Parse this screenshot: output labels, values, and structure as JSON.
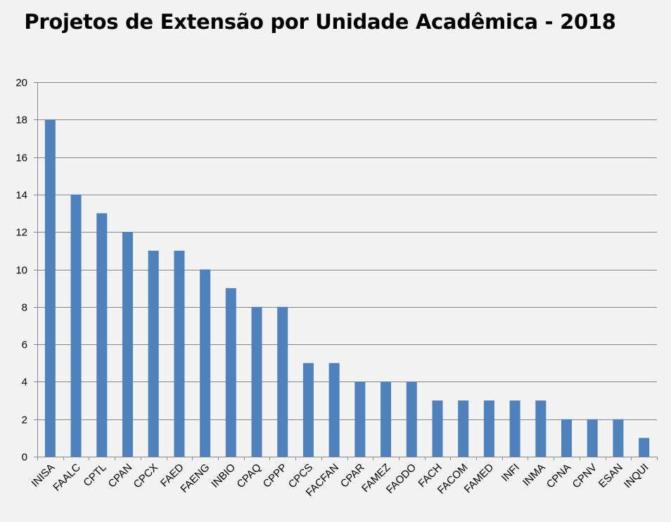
{
  "chart_data": {
    "type": "bar",
    "title": "Projetos de Extensão por Unidade Acadêmica - 2018",
    "xlabel": "",
    "ylabel": "",
    "categories": [
      "INISA",
      "FAALC",
      "CPTL",
      "CPAN",
      "CPCX",
      "FAED",
      "FAENG",
      "INBIO",
      "CPAQ",
      "CPPP",
      "CPCS",
      "FACFAN",
      "CPAR",
      "FAMEZ",
      "FAODO",
      "FACH",
      "FACOM",
      "FAMED",
      "INFI",
      "INMA",
      "CPNA",
      "CPNV",
      "ESAN",
      "INQUI"
    ],
    "values": [
      18,
      14,
      13,
      12,
      11,
      11,
      10,
      9,
      8,
      8,
      5,
      5,
      4,
      4,
      4,
      3,
      3,
      3,
      3,
      3,
      2,
      2,
      2,
      1
    ],
    "ylim": [
      0,
      20
    ],
    "yticks": [
      0,
      2,
      4,
      6,
      8,
      10,
      12,
      14,
      16,
      18,
      20
    ],
    "grid": true,
    "legend": "none",
    "colors": {
      "bar": "#4f81bd",
      "grid": "#868686",
      "axis": "#868686",
      "background": "#f2f2f2"
    }
  }
}
